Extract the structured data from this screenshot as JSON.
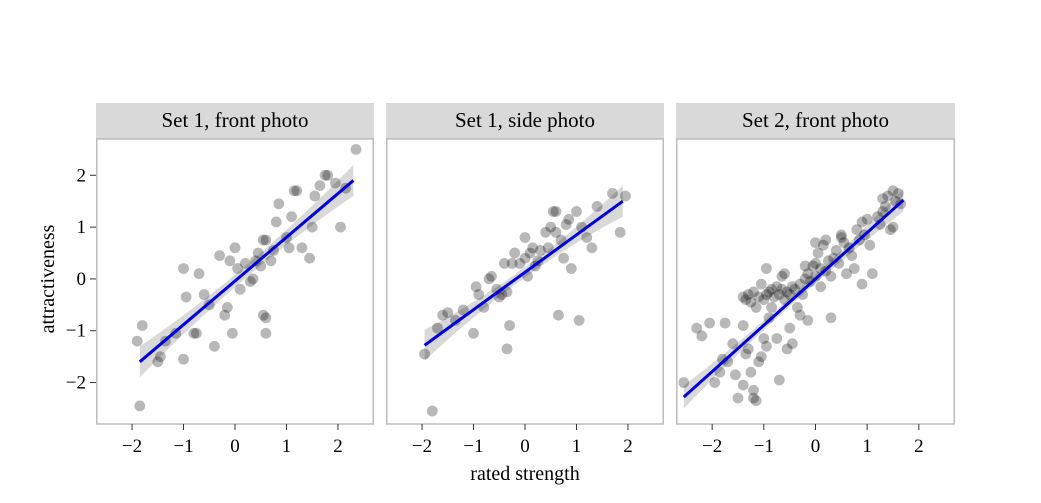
{
  "chart_data": {
    "type": "scatter",
    "xlabel": "rated strength",
    "ylabel": "attractiveness",
    "xlim": [
      -2.7,
      2.7
    ],
    "ylim": [
      -2.8,
      2.7
    ],
    "xticks": [
      -2,
      -1,
      0,
      1,
      2
    ],
    "yticks": [
      -2,
      -1,
      0,
      1,
      2
    ],
    "xtick_labels": [
      "−2",
      "−1",
      "0",
      "1",
      "2"
    ],
    "ytick_labels": [
      "−2",
      "−1",
      "0",
      "1",
      "2"
    ],
    "point_color": "#000000",
    "point_opacity": 0.28,
    "fit_color": "#0000dd",
    "band_color": "#cccccc",
    "strip_color": "#d9d9d9",
    "panel_border_color": "#bbbbbb",
    "panels": [
      {
        "title": "Set 1, front photo",
        "fit": {
          "x": [
            -1.85,
            2.3
          ],
          "y": [
            -1.6,
            1.9
          ],
          "band": [
            0.3,
            0.12,
            0.3
          ]
        },
        "points": [
          [
            -1.85,
            -2.45
          ],
          [
            -1.9,
            -1.2
          ],
          [
            -1.8,
            -0.9
          ],
          [
            -1.5,
            -1.6
          ],
          [
            -1.45,
            -1.5
          ],
          [
            -1.35,
            -1.2
          ],
          [
            -1.15,
            -1.05
          ],
          [
            -1.0,
            -1.55
          ],
          [
            -1.0,
            0.2
          ],
          [
            -0.95,
            -0.35
          ],
          [
            -0.8,
            -1.05
          ],
          [
            -0.75,
            -1.05
          ],
          [
            -0.7,
            0.1
          ],
          [
            -0.6,
            -0.3
          ],
          [
            -0.5,
            -0.5
          ],
          [
            -0.4,
            -1.3
          ],
          [
            -0.3,
            0.45
          ],
          [
            -0.2,
            -0.7
          ],
          [
            -0.15,
            -0.55
          ],
          [
            -0.1,
            0.35
          ],
          [
            -0.05,
            -1.05
          ],
          [
            0.0,
            0.6
          ],
          [
            0.05,
            0.2
          ],
          [
            0.1,
            -0.2
          ],
          [
            0.2,
            0.3
          ],
          [
            0.3,
            -0.05
          ],
          [
            0.35,
            0.0
          ],
          [
            0.4,
            0.35
          ],
          [
            0.45,
            0.5
          ],
          [
            0.5,
            0.25
          ],
          [
            0.55,
            0.75
          ],
          [
            0.6,
            0.75
          ],
          [
            0.55,
            -0.7
          ],
          [
            0.6,
            -0.75
          ],
          [
            0.6,
            -1.05
          ],
          [
            0.7,
            0.35
          ],
          [
            0.75,
            0.55
          ],
          [
            0.8,
            1.1
          ],
          [
            0.85,
            1.45
          ],
          [
            1.0,
            0.8
          ],
          [
            1.05,
            0.6
          ],
          [
            1.1,
            1.2
          ],
          [
            1.15,
            1.7
          ],
          [
            1.2,
            1.7
          ],
          [
            1.3,
            0.6
          ],
          [
            1.45,
            0.4
          ],
          [
            1.5,
            1.0
          ],
          [
            1.55,
            1.6
          ],
          [
            1.65,
            1.8
          ],
          [
            1.75,
            2.0
          ],
          [
            1.8,
            2.0
          ],
          [
            1.95,
            1.85
          ],
          [
            2.05,
            1.0
          ],
          [
            2.15,
            1.75
          ],
          [
            2.35,
            2.5
          ]
        ]
      },
      {
        "title": "Set 1, side photo",
        "fit": {
          "x": [
            -1.95,
            1.9
          ],
          "y": [
            -1.28,
            1.5
          ],
          "band": [
            0.3,
            0.1,
            0.3
          ]
        },
        "points": [
          [
            -1.95,
            -1.45
          ],
          [
            -1.8,
            -2.55
          ],
          [
            -1.7,
            -0.95
          ],
          [
            -1.6,
            -0.7
          ],
          [
            -1.5,
            -0.65
          ],
          [
            -1.35,
            -0.8
          ],
          [
            -1.2,
            -0.6
          ],
          [
            -1.0,
            -1.05
          ],
          [
            -0.95,
            -0.15
          ],
          [
            -0.9,
            -0.3
          ],
          [
            -0.8,
            -0.55
          ],
          [
            -0.7,
            0.0
          ],
          [
            -0.65,
            0.05
          ],
          [
            -0.55,
            -0.2
          ],
          [
            -0.5,
            -0.35
          ],
          [
            -0.45,
            -0.3
          ],
          [
            -0.4,
            0.3
          ],
          [
            -0.35,
            -0.25
          ],
          [
            -0.35,
            -1.35
          ],
          [
            -0.3,
            -0.9
          ],
          [
            -0.25,
            0.3
          ],
          [
            -0.2,
            0.5
          ],
          [
            -0.1,
            0.3
          ],
          [
            0.0,
            0.8
          ],
          [
            0.0,
            0.4
          ],
          [
            0.05,
            0.05
          ],
          [
            0.1,
            0.5
          ],
          [
            0.15,
            0.6
          ],
          [
            0.2,
            0.25
          ],
          [
            0.25,
            0.35
          ],
          [
            0.3,
            0.55
          ],
          [
            0.4,
            0.9
          ],
          [
            0.45,
            0.6
          ],
          [
            0.5,
            1.0
          ],
          [
            0.55,
            1.3
          ],
          [
            0.6,
            1.3
          ],
          [
            0.6,
            0.9
          ],
          [
            0.65,
            -0.7
          ],
          [
            0.7,
            0.75
          ],
          [
            0.75,
            0.4
          ],
          [
            0.8,
            1.05
          ],
          [
            0.85,
            1.15
          ],
          [
            0.9,
            0.2
          ],
          [
            1.0,
            1.3
          ],
          [
            1.05,
            -0.8
          ],
          [
            1.1,
            1.0
          ],
          [
            1.2,
            0.8
          ],
          [
            1.3,
            0.6
          ],
          [
            1.4,
            1.4
          ],
          [
            1.7,
            1.65
          ],
          [
            1.85,
            0.9
          ],
          [
            1.95,
            1.6
          ]
        ]
      },
      {
        "title": "Set 2, front photo",
        "fit": {
          "x": [
            -2.55,
            1.7
          ],
          "y": [
            -2.28,
            1.52
          ],
          "band": [
            0.22,
            0.08,
            0.22
          ]
        },
        "points": [
          [
            -2.55,
            -2.0
          ],
          [
            -2.3,
            -0.95
          ],
          [
            -2.2,
            -1.1
          ],
          [
            -2.05,
            -0.85
          ],
          [
            -1.95,
            -2.0
          ],
          [
            -1.85,
            -1.8
          ],
          [
            -1.8,
            -1.55
          ],
          [
            -1.75,
            -0.85
          ],
          [
            -1.7,
            -1.6
          ],
          [
            -1.6,
            -1.25
          ],
          [
            -1.55,
            -1.85
          ],
          [
            -1.5,
            -2.3
          ],
          [
            -1.4,
            -0.9
          ],
          [
            -1.4,
            -2.05
          ],
          [
            -1.35,
            -1.45
          ],
          [
            -1.3,
            -1.35
          ],
          [
            -1.25,
            -1.8
          ],
          [
            -1.2,
            -2.15
          ],
          [
            -1.2,
            -2.3
          ],
          [
            -1.15,
            -2.35
          ],
          [
            -1.1,
            -1.6
          ],
          [
            -1.05,
            -1.5
          ],
          [
            -1.0,
            -1.15
          ],
          [
            -0.95,
            -1.3
          ],
          [
            -1.4,
            -0.35
          ],
          [
            -1.35,
            -0.4
          ],
          [
            -1.3,
            -0.3
          ],
          [
            -1.25,
            -0.45
          ],
          [
            -1.2,
            -0.25
          ],
          [
            -1.15,
            -0.55
          ],
          [
            -1.1,
            -0.35
          ],
          [
            -1.05,
            -0.1
          ],
          [
            -1.0,
            -0.4
          ],
          [
            -0.95,
            -0.3
          ],
          [
            -0.9,
            -0.25
          ],
          [
            -0.85,
            -0.2
          ],
          [
            -0.8,
            -0.35
          ],
          [
            -0.75,
            -0.15
          ],
          [
            -0.7,
            -0.3
          ],
          [
            -0.65,
            -0.2
          ],
          [
            -0.6,
            -0.4
          ],
          [
            -0.55,
            -0.25
          ],
          [
            -0.5,
            -0.3
          ],
          [
            -0.45,
            -0.15
          ],
          [
            -0.4,
            -0.2
          ],
          [
            -0.35,
            -0.55
          ],
          [
            -0.3,
            -0.1
          ],
          [
            -0.25,
            -0.3
          ],
          [
            -0.2,
            0.0
          ],
          [
            -0.15,
            0.1
          ],
          [
            -0.1,
            -0.05
          ],
          [
            -0.05,
            0.25
          ],
          [
            0.0,
            0.3
          ],
          [
            0.05,
            0.5
          ],
          [
            0.1,
            0.2
          ],
          [
            0.15,
            0.65
          ],
          [
            0.2,
            0.15
          ],
          [
            0.25,
            0.35
          ],
          [
            0.3,
            0.05
          ],
          [
            0.35,
            0.4
          ],
          [
            0.4,
            0.55
          ],
          [
            0.45,
            0.3
          ],
          [
            0.5,
            0.85
          ],
          [
            0.55,
            0.7
          ],
          [
            0.6,
            0.1
          ],
          [
            0.65,
            0.6
          ],
          [
            0.7,
            0.45
          ],
          [
            0.8,
            0.95
          ],
          [
            0.85,
            0.75
          ],
          [
            0.9,
            1.1
          ],
          [
            0.95,
            0.85
          ],
          [
            1.0,
            1.15
          ],
          [
            1.05,
            0.65
          ],
          [
            1.1,
            0.1
          ],
          [
            1.2,
            1.2
          ],
          [
            1.25,
            1.05
          ],
          [
            1.3,
            1.3
          ],
          [
            1.35,
            1.4
          ],
          [
            1.4,
            1.6
          ],
          [
            1.45,
            0.95
          ],
          [
            1.5,
            1.0
          ],
          [
            1.55,
            1.5
          ],
          [
            1.6,
            1.65
          ],
          [
            1.65,
            1.45
          ],
          [
            1.5,
            1.7
          ],
          [
            1.3,
            1.55
          ],
          [
            -0.9,
            -0.75
          ],
          [
            -0.75,
            -1.15
          ],
          [
            -0.55,
            -1.35
          ],
          [
            -0.5,
            -0.95
          ],
          [
            -0.45,
            -1.25
          ],
          [
            -0.3,
            -0.7
          ],
          [
            -0.15,
            -0.8
          ],
          [
            -0.7,
            -1.95
          ],
          [
            0.3,
            -0.75
          ],
          [
            -0.95,
            0.2
          ],
          [
            -0.65,
            0.05
          ],
          [
            -0.85,
            -0.55
          ],
          [
            -0.6,
            0.1
          ],
          [
            0.0,
            0.7
          ],
          [
            0.2,
            0.75
          ],
          [
            0.5,
            0.8
          ],
          [
            0.75,
            0.2
          ],
          [
            0.9,
            -0.1
          ],
          [
            0.0,
            0.05
          ],
          [
            -0.2,
            0.25
          ],
          [
            0.1,
            -0.15
          ]
        ]
      }
    ]
  }
}
